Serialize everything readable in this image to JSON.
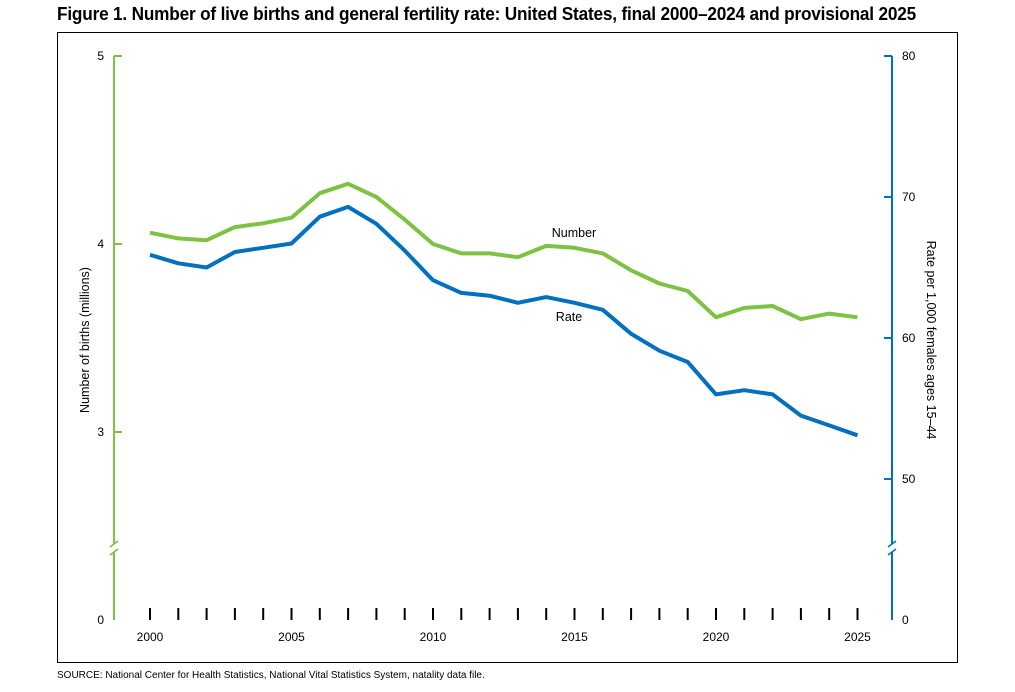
{
  "title": "Figure 1. Number of live births and general fertility rate: United States, final 2000–2024 and provisional 2025",
  "source": "SOURCE: National Center for Health Statistics, National Vital Statistics System, natality data file.",
  "chart_data": {
    "type": "line",
    "title": "Figure 1. Number of live births and general fertility rate: United States, final 2000–2024 and provisional 2025",
    "xlabel": "",
    "ylabel_left": "Number of births (millions)",
    "ylabel_right": "Rate per 1,000 females ages 15–44",
    "x": [
      2000,
      2001,
      2002,
      2003,
      2004,
      2005,
      2006,
      2007,
      2008,
      2009,
      2010,
      2011,
      2012,
      2013,
      2014,
      2015,
      2016,
      2017,
      2018,
      2019,
      2020,
      2021,
      2022,
      2023,
      2024,
      2025
    ],
    "xticks": [
      "2000",
      "2005",
      "2010",
      "2015",
      "2020",
      "2025"
    ],
    "left_axis": {
      "ticks": [
        "0",
        "3",
        "4",
        "5"
      ],
      "broken": true,
      "ylim": [
        0,
        5
      ]
    },
    "right_axis": {
      "ticks": [
        "0",
        "50",
        "60",
        "70",
        "80"
      ],
      "broken": true,
      "ylim": [
        0,
        80
      ]
    },
    "series": [
      {
        "name": "Number",
        "axis": "left",
        "color": "#7dc242",
        "values": [
          4.06,
          4.03,
          4.02,
          4.09,
          4.11,
          4.14,
          4.27,
          4.32,
          4.25,
          4.13,
          4.0,
          3.95,
          3.95,
          3.93,
          3.99,
          3.98,
          3.95,
          3.86,
          3.79,
          3.75,
          3.61,
          3.66,
          3.67,
          3.6,
          3.63,
          3.61
        ]
      },
      {
        "name": "Rate",
        "axis": "right",
        "color": "#0070c0",
        "values": [
          65.9,
          65.3,
          65.0,
          66.1,
          66.4,
          66.7,
          68.6,
          69.3,
          68.1,
          66.2,
          64.1,
          63.2,
          63.0,
          62.5,
          62.9,
          62.5,
          62.0,
          60.3,
          59.1,
          58.3,
          56.0,
          56.3,
          56.0,
          54.5,
          53.8,
          53.1
        ]
      }
    ]
  }
}
